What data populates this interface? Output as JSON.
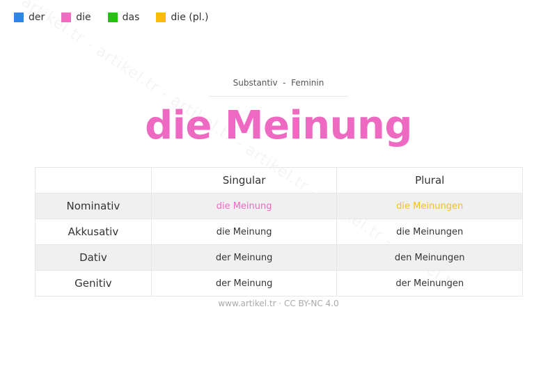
{
  "watermark": "artikel.tr - artikel.tr - artikel.tr - artikel.tr - artikel.tr - artikel.tr",
  "legend": [
    {
      "label": "der",
      "color": "#2e86e8"
    },
    {
      "label": "die",
      "color": "#f06ec1"
    },
    {
      "label": "das",
      "color": "#22c40e"
    },
    {
      "label": "die (pl.)",
      "color": "#fbbb0a"
    }
  ],
  "subtitle": "Substantiv  -  Feminin",
  "title": {
    "text": "die Meinung",
    "color": "#ee6ac2"
  },
  "table": {
    "headers": [
      "",
      "Singular",
      "Plural"
    ],
    "rows": [
      {
        "case": "Nominativ",
        "singular": "die Meinung",
        "plural": "die Meinungen",
        "singular_color": "#ee6ac2",
        "plural_color": "#f5be22"
      },
      {
        "case": "Akkusativ",
        "singular": "die Meinung",
        "plural": "die Meinungen"
      },
      {
        "case": "Dativ",
        "singular": "der Meinung",
        "plural": "den Meinungen"
      },
      {
        "case": "Genitiv",
        "singular": "der Meinung",
        "plural": "der Meinungen"
      }
    ]
  },
  "footer": "www.artikel.tr · CC BY-NC 4.0"
}
